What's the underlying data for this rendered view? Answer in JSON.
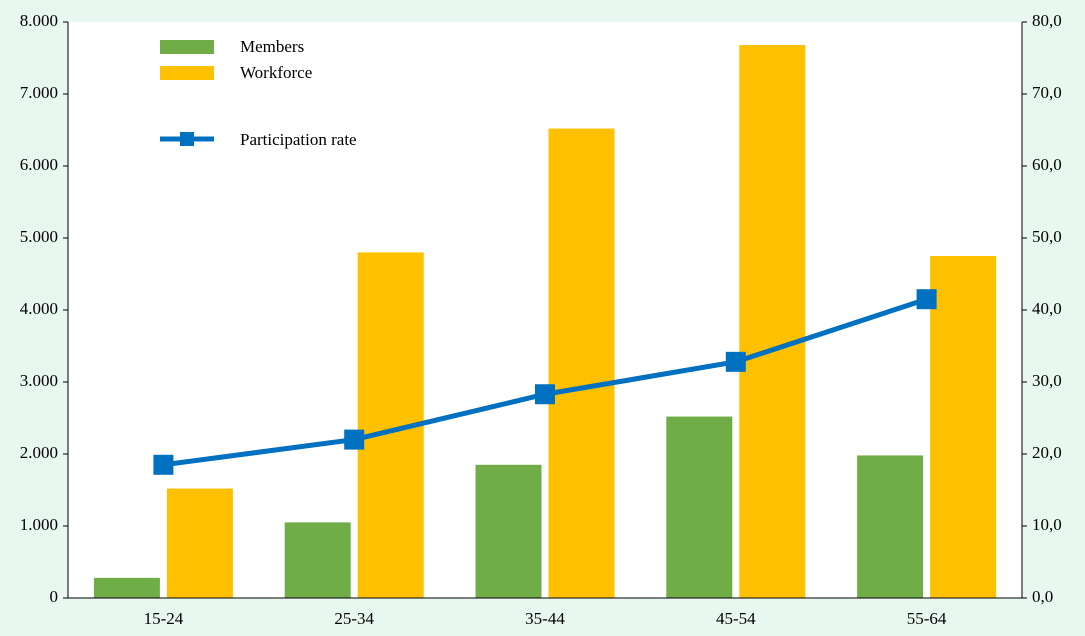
{
  "chart_data": {
    "type": "bar-line",
    "categories": [
      "15-24",
      "25-34",
      "35-44",
      "45-54",
      "55-64"
    ],
    "series": [
      {
        "name": "Members",
        "type": "bar",
        "color": "#70ad47",
        "values": [
          280,
          1050,
          1850,
          2520,
          1980
        ]
      },
      {
        "name": "Workforce",
        "type": "bar",
        "color": "#ffc000",
        "values": [
          1520,
          4800,
          6520,
          7680,
          4750
        ]
      },
      {
        "name": "Participation rate",
        "type": "line",
        "axis": "y2",
        "color": "#0070c0",
        "values": [
          18.5,
          22.0,
          28.3,
          32.8,
          41.5
        ]
      }
    ],
    "ylim": [
      0,
      8000
    ],
    "yticks": [
      0,
      {
        "value": 1000,
        "label": "1.000"
      },
      {
        "value": 2000,
        "label": "2.000"
      },
      {
        "value": 3000,
        "label": "3.000"
      },
      {
        "value": 4000,
        "label": "4.000"
      },
      {
        "value": 5000,
        "label": "5.000"
      },
      {
        "value": 6000,
        "label": "6.000"
      },
      {
        "value": 7000,
        "label": "7.000"
      },
      {
        "value": 8000,
        "label": "8.000"
      }
    ],
    "y2lim": [
      0,
      80
    ],
    "y2ticks": [
      {
        "value": 0,
        "label": "0,0"
      },
      {
        "value": 10,
        "label": "10,0"
      },
      {
        "value": 20,
        "label": "20,0"
      },
      {
        "value": 30,
        "label": "30,0"
      },
      {
        "value": 40,
        "label": "40,0"
      },
      {
        "value": 50,
        "label": "50,0"
      },
      {
        "value": 60,
        "label": "60,0"
      },
      {
        "value": 70,
        "label": "70,0"
      },
      {
        "value": 80,
        "label": "80,0"
      }
    ],
    "legend": "upper left"
  }
}
